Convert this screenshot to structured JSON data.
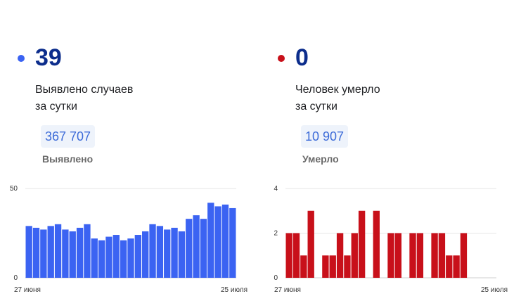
{
  "cases": {
    "value": "39",
    "label_line1": "Выявлено случаев",
    "label_line2": "за сутки",
    "total": "367 707",
    "total_label": "Выявлено",
    "color": "#3b63f2"
  },
  "deaths": {
    "value": "0",
    "label_line1": "Человек умерло",
    "label_line2": "за сутки",
    "total": "10 907",
    "total_label": "Умерло",
    "color": "#c8101a"
  },
  "chart_data": [
    {
      "type": "bar",
      "x_start_label": "27 июня",
      "x_end_label": "25 июля",
      "ylim": [
        0,
        50
      ],
      "yticks": [
        0,
        50
      ],
      "grid": true,
      "values": [
        29,
        28,
        27,
        29,
        30,
        27,
        26,
        28,
        30,
        22,
        21,
        23,
        24,
        21,
        22,
        24,
        26,
        30,
        29,
        27,
        28,
        26,
        33,
        35,
        33,
        42,
        40,
        41,
        39
      ]
    },
    {
      "type": "bar",
      "x_start_label": "27 июня",
      "x_end_label": "25 июля",
      "ylim": [
        0,
        4
      ],
      "yticks": [
        0,
        2,
        4
      ],
      "grid": true,
      "values": [
        2,
        2,
        1,
        3,
        0,
        1,
        1,
        2,
        1,
        2,
        3,
        0,
        3,
        0,
        2,
        2,
        0,
        2,
        2,
        0,
        2,
        2,
        1,
        1,
        2,
        0,
        0,
        0,
        0
      ]
    }
  ]
}
